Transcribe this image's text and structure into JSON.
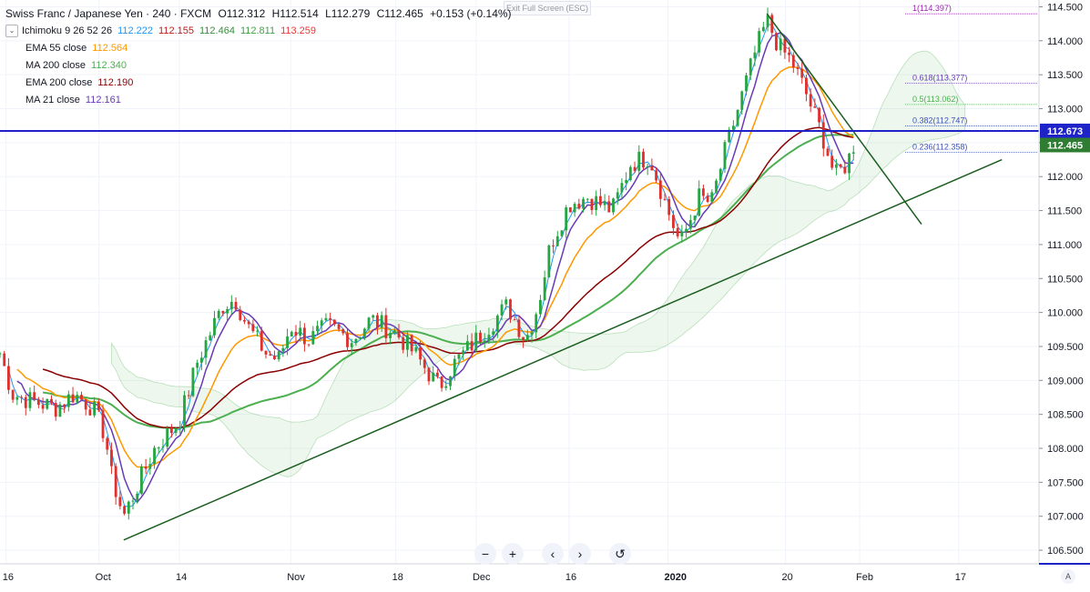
{
  "header": {
    "symbol": "Swiss Franc / Japanese Yen · 240 · FXCM",
    "open": "O112.312",
    "high": "H112.514",
    "low": "L112.279",
    "close": "C112.465",
    "change": "+0.153 (+0.14%)",
    "exit_fullscreen": "Exit Full Screen (ESC)"
  },
  "indicators": [
    {
      "name": "Ichimoku 9 26 52 26",
      "values": [
        "112.222",
        "112.155",
        "112.464",
        "112.811",
        "113.259"
      ],
      "colors": [
        "#2196f3",
        "#b71c1c",
        "#388e3c",
        "#43a047",
        "#e53935"
      ]
    },
    {
      "name": "EMA 55 close",
      "values": [
        "112.564"
      ],
      "colors": [
        "#ff9800"
      ]
    },
    {
      "name": "MA 200 close",
      "values": [
        "112.340"
      ],
      "colors": [
        "#4caf50"
      ]
    },
    {
      "name": "EMA 200 close",
      "values": [
        "112.190"
      ],
      "colors": [
        "#8b0000"
      ]
    },
    {
      "name": "MA 21 close",
      "values": [
        "112.161"
      ],
      "colors": [
        "#673ab7"
      ]
    }
  ],
  "chart_data": {
    "type": "candlestick",
    "title": "Swiss Franc / Japanese Yen · 240 · FXCM",
    "ylim": [
      106.3,
      114.6
    ],
    "y_ticks": [
      "114.500",
      "114.000",
      "113.500",
      "113.000",
      "112.500",
      "112.000",
      "111.500",
      "111.000",
      "110.500",
      "110.000",
      "109.500",
      "109.000",
      "108.500",
      "108.000",
      "107.500",
      "107.000",
      "106.500"
    ],
    "x_ticks": [
      "16",
      "Oct",
      "14",
      "Nov",
      "18",
      "Dec",
      "16",
      "2020",
      "20",
      "Feb",
      "17"
    ],
    "x_tick_dates": [
      "2019-09-16",
      "2019-10-01",
      "2019-10-14",
      "2019-11-01",
      "2019-11-18",
      "2019-12-01",
      "2019-12-16",
      "2020-01-01",
      "2020-01-20",
      "2020-02-01",
      "2020-02-17"
    ],
    "x_range": [
      "2019-09-15",
      "2020-03-01"
    ],
    "price_path": [
      {
        "date": "2019-09-15",
        "price": 109.4
      },
      {
        "date": "2019-09-17",
        "price": 108.8
      },
      {
        "date": "2019-09-20",
        "price": 108.7
      },
      {
        "date": "2019-09-24",
        "price": 108.6
      },
      {
        "date": "2019-09-27",
        "price": 108.8
      },
      {
        "date": "2019-09-30",
        "price": 108.6
      },
      {
        "date": "2019-10-02",
        "price": 108.2
      },
      {
        "date": "2019-10-03",
        "price": 107.6
      },
      {
        "date": "2019-10-05",
        "price": 107.0
      },
      {
        "date": "2019-10-07",
        "price": 107.4
      },
      {
        "date": "2019-10-10",
        "price": 108.0
      },
      {
        "date": "2019-10-14",
        "price": 108.4
      },
      {
        "date": "2019-10-17",
        "price": 109.3
      },
      {
        "date": "2019-10-21",
        "price": 110.1
      },
      {
        "date": "2019-10-23",
        "price": 110.2
      },
      {
        "date": "2019-10-25",
        "price": 109.8
      },
      {
        "date": "2019-10-28",
        "price": 109.4
      },
      {
        "date": "2019-10-30",
        "price": 109.3
      },
      {
        "date": "2019-11-01",
        "price": 109.8
      },
      {
        "date": "2019-11-04",
        "price": 109.6
      },
      {
        "date": "2019-11-07",
        "price": 109.8
      },
      {
        "date": "2019-11-11",
        "price": 109.6
      },
      {
        "date": "2019-11-14",
        "price": 109.9
      },
      {
        "date": "2019-11-18",
        "price": 109.7
      },
      {
        "date": "2019-11-21",
        "price": 109.4
      },
      {
        "date": "2019-11-25",
        "price": 108.9
      },
      {
        "date": "2019-11-27",
        "price": 109.2
      },
      {
        "date": "2019-12-01",
        "price": 109.6
      },
      {
        "date": "2019-12-04",
        "price": 109.9
      },
      {
        "date": "2019-12-06",
        "price": 110.1
      },
      {
        "date": "2019-12-09",
        "price": 109.6
      },
      {
        "date": "2019-12-11",
        "price": 110.1
      },
      {
        "date": "2019-12-13",
        "price": 111.0
      },
      {
        "date": "2019-12-16",
        "price": 111.6
      },
      {
        "date": "2019-12-19",
        "price": 111.7
      },
      {
        "date": "2019-12-23",
        "price": 111.5
      },
      {
        "date": "2019-12-26",
        "price": 112.2
      },
      {
        "date": "2019-12-29",
        "price": 112.3
      },
      {
        "date": "2020-01-01",
        "price": 111.5
      },
      {
        "date": "2020-01-03",
        "price": 111.0
      },
      {
        "date": "2020-01-06",
        "price": 111.7
      },
      {
        "date": "2020-01-08",
        "price": 111.6
      },
      {
        "date": "2020-01-10",
        "price": 112.3
      },
      {
        "date": "2020-01-13",
        "price": 113.2
      },
      {
        "date": "2020-01-15",
        "price": 113.8
      },
      {
        "date": "2020-01-17",
        "price": 114.3
      },
      {
        "date": "2020-01-19",
        "price": 113.9
      },
      {
        "date": "2020-01-21",
        "price": 113.7
      },
      {
        "date": "2020-01-23",
        "price": 113.3
      },
      {
        "date": "2020-01-26",
        "price": 112.6
      },
      {
        "date": "2020-01-28",
        "price": 112.0
      },
      {
        "date": "2020-01-30",
        "price": 112.2
      },
      {
        "date": "2020-01-31",
        "price": 112.465
      }
    ],
    "candle_count": 200,
    "fib_levels": [
      {
        "label": "1(114.397)",
        "value": 114.397,
        "color": "#9c27b0"
      },
      {
        "label": "0.618(113.377)",
        "value": 113.377,
        "color": "#673ab7"
      },
      {
        "label": "0.5(113.062)",
        "value": 113.062,
        "color": "#4caf50"
      },
      {
        "label": "0.382(112.747)",
        "value": 112.747,
        "color": "#3f51b5"
      },
      {
        "label": "0.236(112.358)",
        "value": 112.358,
        "color": "#3f51b5"
      }
    ],
    "horizontal_line": {
      "value": 112.673,
      "label": "112.673",
      "color": "#1e22c9"
    },
    "last_price": {
      "value": 112.465,
      "label": "112.465",
      "color": "#2e7d32"
    },
    "trendlines": [
      {
        "name": "ascending support",
        "from": {
          "date": "2019-10-05",
          "price": 106.65
        },
        "to": {
          "date": "2020-02-24",
          "price": 112.25
        },
        "color": "#1b5e20"
      },
      {
        "name": "descending resistance",
        "from": {
          "date": "2020-01-17",
          "price": 114.4
        },
        "to": {
          "date": "2020-02-11",
          "price": 111.3
        },
        "color": "#1b5e20"
      }
    ]
  },
  "nav": {
    "zoom_out": "−",
    "zoom_in": "+",
    "scroll_left": "‹",
    "scroll_right": "›",
    "reset": "↺",
    "auto_scale": "A"
  }
}
